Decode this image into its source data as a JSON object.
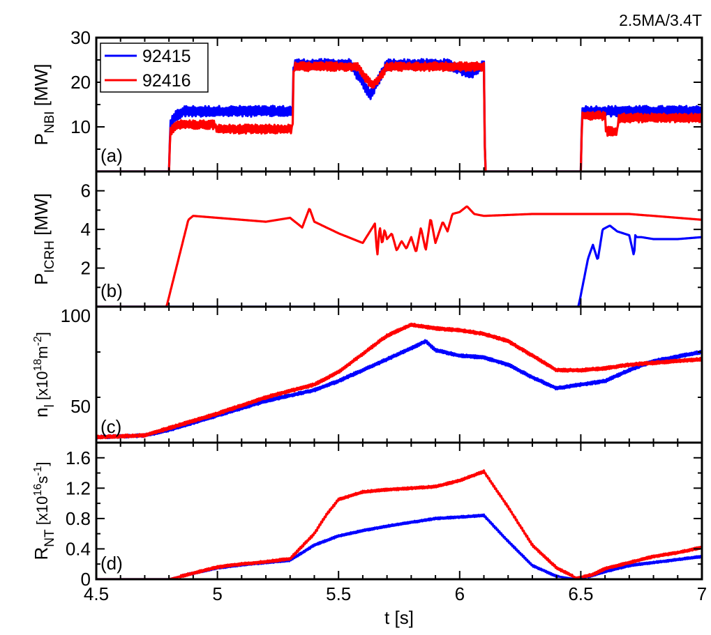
{
  "corner_label": "2.5MA/3.4T",
  "colors": {
    "92415": "#0000ff",
    "92416": "#ff0000",
    "axes": "#000000"
  },
  "chart_data": [
    {
      "type": "line",
      "panel": "(a)",
      "ylabel": {
        "main": "P",
        "sub": "NBI",
        "unit": "[MW]"
      },
      "xlim": [
        4.5,
        7.0
      ],
      "ylim": [
        0,
        30
      ],
      "yticks": [
        10,
        20,
        30
      ],
      "ytick_labels": [
        "10",
        "20",
        "30"
      ],
      "legend": {
        "placement": "top-left",
        "entries": [
          "92415",
          "92416"
        ]
      },
      "series": [
        {
          "name": "92415",
          "color": "#0000ff",
          "noise": 1.2,
          "x": [
            4.5,
            4.8,
            4.805,
            4.83,
            4.86,
            5.31,
            5.315,
            5.55,
            5.6,
            5.63,
            5.66,
            5.7,
            5.95,
            6.05,
            6.1,
            6.105,
            6.5,
            6.505,
            7.0
          ],
          "y": [
            0,
            0,
            10.5,
            12.5,
            13.5,
            13.5,
            24,
            24,
            20,
            17,
            20,
            24,
            24,
            22,
            24,
            0,
            0,
            13.5,
            13.5
          ]
        },
        {
          "name": "92416",
          "color": "#ff0000",
          "noise": 1.0,
          "x": [
            4.5,
            4.8,
            4.805,
            4.83,
            4.99,
            4.995,
            5.31,
            5.315,
            5.58,
            5.61,
            5.64,
            5.67,
            5.7,
            6.1,
            6.105,
            6.5,
            6.505,
            6.6,
            6.605,
            6.65,
            6.655,
            7.0
          ],
          "y": [
            0,
            0,
            9,
            10.5,
            10.5,
            9.5,
            9.5,
            23.5,
            23.5,
            21,
            19.5,
            21,
            23.5,
            23.5,
            0,
            0,
            12.5,
            12.5,
            9,
            9,
            12,
            12
          ]
        }
      ]
    },
    {
      "type": "line",
      "panel": "(b)",
      "ylabel": {
        "main": "P",
        "sub": "ICRH",
        "unit": "[MW]"
      },
      "xlim": [
        4.5,
        7.0
      ],
      "ylim": [
        0,
        7
      ],
      "yticks": [
        2,
        4,
        6
      ],
      "ytick_labels": [
        "2",
        "4",
        "6"
      ],
      "series": [
        {
          "name": "92416",
          "color": "#ff0000",
          "noise": 0,
          "x": [
            4.5,
            4.79,
            4.81,
            4.85,
            4.88,
            4.9,
            5.0,
            5.1,
            5.2,
            5.3,
            5.35,
            5.38,
            5.4,
            5.5,
            5.6,
            5.65,
            5.66,
            5.67,
            5.68,
            5.69,
            5.7,
            5.72,
            5.74,
            5.76,
            5.78,
            5.8,
            5.82,
            5.84,
            5.86,
            5.88,
            5.9,
            5.93,
            5.95,
            5.97,
            6.0,
            6.03,
            6.06,
            6.1,
            6.3,
            6.5,
            6.7,
            7.0
          ],
          "y": [
            0,
            0,
            1.0,
            3.0,
            4.5,
            4.7,
            4.6,
            4.5,
            4.4,
            4.6,
            4.1,
            5.1,
            4.4,
            3.8,
            3.3,
            4.3,
            2.6,
            4.2,
            3.2,
            4.0,
            3.5,
            3.8,
            2.9,
            3.4,
            3.0,
            3.6,
            2.8,
            4.1,
            2.9,
            4.6,
            3.3,
            4.4,
            3.9,
            4.8,
            4.9,
            5.2,
            4.8,
            4.7,
            4.8,
            4.8,
            4.8,
            4.5
          ]
        },
        {
          "name": "92415",
          "color": "#0000ff",
          "noise": 0,
          "x": [
            4.5,
            6.49,
            6.5,
            6.53,
            6.55,
            6.57,
            6.59,
            6.62,
            6.65,
            6.7,
            6.72,
            6.725,
            6.73,
            6.75,
            6.8,
            6.9,
            7.0
          ],
          "y": [
            0,
            0,
            0.6,
            2.5,
            3.2,
            2.4,
            4.0,
            4.2,
            3.9,
            3.7,
            2.6,
            3.7,
            3.6,
            3.6,
            3.5,
            3.5,
            3.6
          ]
        }
      ]
    },
    {
      "type": "line",
      "panel": "(c)",
      "ylabel": {
        "main": "n",
        "sub": "l",
        "unit_prefix": "[x10",
        "sup1": "18",
        "unit_mid": "m",
        "sup2": "-2",
        "unit_suffix": "]"
      },
      "xlim": [
        4.5,
        7.0
      ],
      "ylim": [
        30,
        105
      ],
      "yticks": [
        50,
        100
      ],
      "ytick_labels": [
        "50",
        "100"
      ],
      "series": [
        {
          "name": "92415",
          "color": "#0000ff",
          "noise": 0.8,
          "x": [
            4.5,
            4.7,
            4.8,
            5.0,
            5.2,
            5.4,
            5.5,
            5.6,
            5.7,
            5.8,
            5.86,
            5.9,
            6.0,
            6.1,
            6.2,
            6.3,
            6.4,
            6.5,
            6.6,
            6.7,
            6.8,
            7.0
          ],
          "y": [
            33,
            34,
            37,
            45,
            53,
            59,
            64,
            70,
            76,
            82,
            86,
            81,
            78,
            77,
            73,
            66,
            60,
            62,
            64,
            70,
            75,
            80
          ]
        },
        {
          "name": "92416",
          "color": "#ff0000",
          "noise": 0.8,
          "x": [
            4.5,
            4.7,
            4.8,
            5.0,
            5.2,
            5.4,
            5.5,
            5.6,
            5.7,
            5.8,
            5.9,
            6.0,
            6.1,
            6.2,
            6.3,
            6.4,
            6.5,
            6.6,
            6.7,
            7.0
          ],
          "y": [
            33,
            34,
            38,
            46,
            55,
            62,
            69,
            79,
            89,
            95,
            93,
            92,
            90,
            86,
            78,
            70,
            70,
            71,
            73,
            76
          ]
        }
      ]
    },
    {
      "type": "line",
      "panel": "(d)",
      "ylabel": {
        "main": "R",
        "sub": "NT",
        "unit_prefix": "[x10",
        "sup1": "16",
        "unit_mid": "s",
        "sup2": "-1",
        "unit_suffix": "]"
      },
      "xlabel": "t [s]",
      "xlim": [
        4.5,
        7.0
      ],
      "xticks": [
        4.5,
        5,
        5.5,
        6,
        6.5,
        7
      ],
      "xtick_labels": [
        "4.5",
        "5",
        "5.5",
        "6",
        "6.5",
        "7"
      ],
      "ylim": [
        0,
        1.8
      ],
      "yticks": [
        0,
        0.4,
        0.8,
        1.2,
        1.6
      ],
      "ytick_labels": [
        "0",
        "0.4",
        "0.8",
        "1.2",
        "1.6"
      ],
      "series": [
        {
          "name": "92415",
          "color": "#0000ff",
          "noise": 0.012,
          "x": [
            4.5,
            4.8,
            4.9,
            5.0,
            5.1,
            5.2,
            5.3,
            5.4,
            5.5,
            5.6,
            5.7,
            5.8,
            5.9,
            6.0,
            6.05,
            6.1,
            6.2,
            6.3,
            6.4,
            6.48,
            6.55,
            6.6,
            6.7,
            6.8,
            6.9,
            7.0
          ],
          "y": [
            0,
            0,
            0.08,
            0.15,
            0.19,
            0.22,
            0.25,
            0.45,
            0.57,
            0.64,
            0.7,
            0.75,
            0.8,
            0.82,
            0.83,
            0.84,
            0.5,
            0.18,
            0.04,
            0.0,
            0.05,
            0.1,
            0.18,
            0.22,
            0.26,
            0.3
          ]
        },
        {
          "name": "92416",
          "color": "#ff0000",
          "noise": 0.015,
          "x": [
            4.5,
            4.8,
            4.9,
            5.0,
            5.1,
            5.2,
            5.3,
            5.4,
            5.45,
            5.5,
            5.6,
            5.7,
            5.8,
            5.9,
            6.0,
            6.05,
            6.1,
            6.2,
            6.3,
            6.4,
            6.48,
            6.55,
            6.6,
            6.7,
            6.8,
            6.9,
            7.0
          ],
          "y": [
            0,
            0,
            0.08,
            0.16,
            0.2,
            0.23,
            0.27,
            0.6,
            0.85,
            1.05,
            1.15,
            1.18,
            1.2,
            1.22,
            1.3,
            1.36,
            1.42,
            0.95,
            0.45,
            0.15,
            0.02,
            0.06,
            0.14,
            0.22,
            0.3,
            0.35,
            0.42
          ]
        }
      ]
    }
  ]
}
